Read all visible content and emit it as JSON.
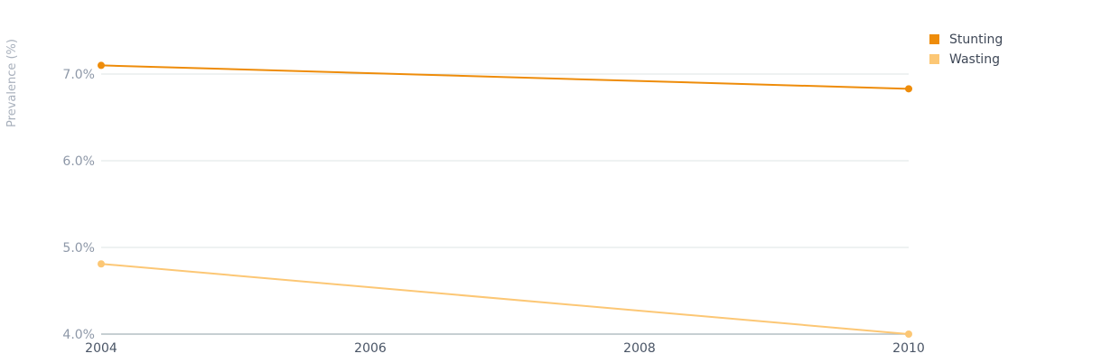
{
  "chart_data": {
    "type": "line",
    "ylabel": "Prevalence (%)",
    "x": [
      2004,
      2010
    ],
    "xticks": [
      "2004",
      "2006",
      "2008",
      "2010"
    ],
    "xlim": [
      2004,
      2010
    ],
    "ylim": [
      4.0,
      7.0
    ],
    "yticks": [
      "4.0%",
      "5.0%",
      "6.0%",
      "7.0%"
    ],
    "series": [
      {
        "name": "Stunting",
        "values": [
          7.1,
          6.83
        ],
        "color": "#ee8c0a"
      },
      {
        "name": "Wasting",
        "values": [
          4.81,
          4.0
        ],
        "color": "#fcc775"
      }
    ],
    "grid": true,
    "legend": "top-right"
  }
}
